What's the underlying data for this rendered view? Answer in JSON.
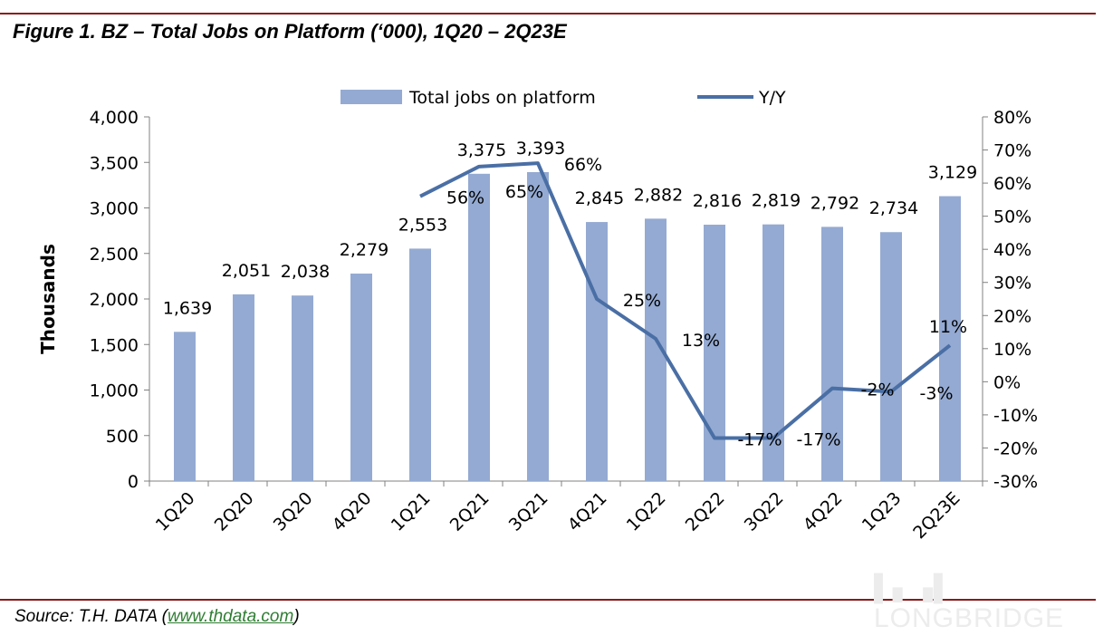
{
  "title": "Figure 1.  BZ – Total Jobs on Platform (‘000), 1Q20 – 2Q23E",
  "source_prefix": "Source: T.H. DATA (",
  "source_link": "www.thdata.com",
  "source_suffix": ")",
  "watermark": "LONGBRIDGE",
  "colors": {
    "bar": "#94aad2",
    "line": "#4a6fa5",
    "rule": "#8b1a1a"
  },
  "chart_data": {
    "type": "bar+line",
    "categories": [
      "1Q20",
      "2Q20",
      "3Q20",
      "4Q20",
      "1Q21",
      "2Q21",
      "3Q21",
      "4Q21",
      "1Q22",
      "2Q22",
      "3Q22",
      "4Q22",
      "1Q23",
      "2Q23E"
    ],
    "series": [
      {
        "name": "Total jobs on platform",
        "type": "bar",
        "axis": "left",
        "values": [
          1639,
          2051,
          2038,
          2279,
          2553,
          3375,
          3393,
          2845,
          2882,
          2816,
          2819,
          2792,
          2734,
          3129
        ],
        "labels": [
          "1,639",
          "2,051",
          "2,038",
          "2,279",
          "2,553",
          "3,375",
          "3,393",
          "2,845",
          "2,882",
          "2,816",
          "2,819",
          "2,792",
          "2,734",
          "3,129"
        ]
      },
      {
        "name": "Y/Y",
        "type": "line",
        "axis": "right",
        "values": [
          null,
          null,
          null,
          null,
          56,
          65,
          66,
          25,
          13,
          -17,
          -17,
          -2,
          -3,
          11
        ],
        "labels": [
          null,
          null,
          null,
          null,
          "56%",
          "65%",
          "66%",
          "25%",
          "13%",
          "-17%",
          "-17%",
          "-2%",
          "-3%",
          "11%"
        ]
      }
    ],
    "ylabel": "Thousands",
    "ylim": [
      0,
      4000
    ],
    "yticks": [
      "0",
      "500",
      "1,000",
      "1,500",
      "2,000",
      "2,500",
      "3,000",
      "3,500",
      "4,000"
    ],
    "y2lim": [
      -30,
      80
    ],
    "y2ticks": [
      "-30%",
      "-20%",
      "-10%",
      "0%",
      "10%",
      "20%",
      "30%",
      "40%",
      "50%",
      "60%",
      "70%",
      "80%"
    ],
    "legend": "top",
    "grid": false
  }
}
